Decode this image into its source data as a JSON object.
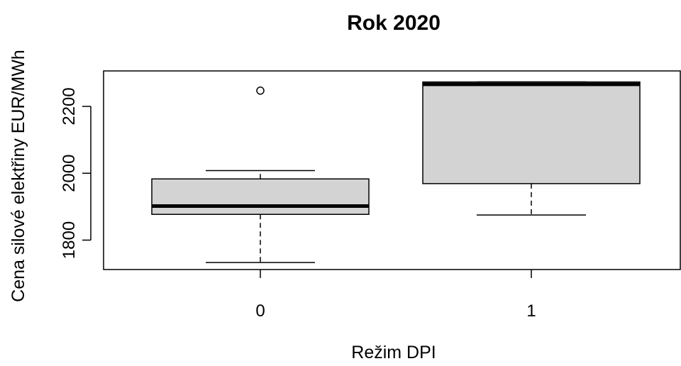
{
  "chart_data": {
    "type": "boxplot",
    "title": "Rok 2020",
    "xlabel": "Režim DPI",
    "ylabel": "Cena silové elektřiny EUR/MWh",
    "categories": [
      "0",
      "1"
    ],
    "ylim": [
      1712,
      2306
    ],
    "yticks": [
      1800,
      2000,
      2200
    ],
    "grid": false,
    "boxes": [
      {
        "category": "0",
        "whisker_low": 1733,
        "q1": 1877,
        "median": 1902,
        "q3": 1983,
        "whisker_high": 2008,
        "outliers": [
          2247
        ]
      },
      {
        "category": "1",
        "whisker_low": 1875,
        "q1": 1969,
        "median": 2266,
        "q3": 2273,
        "whisker_high": 2273,
        "outliers": []
      }
    ],
    "colors": {
      "box_fill": "#d3d3d3",
      "stroke": "#000000"
    }
  }
}
